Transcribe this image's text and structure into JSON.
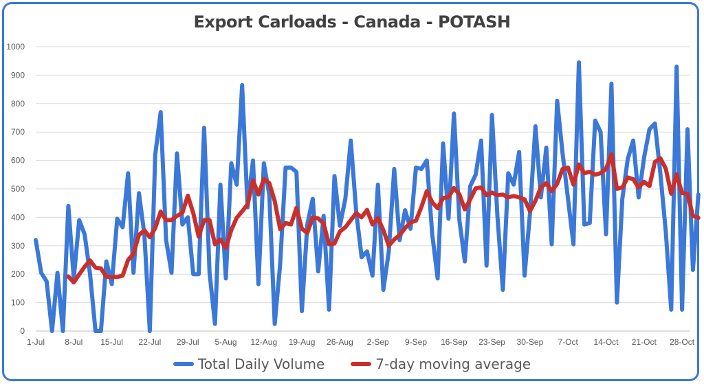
{
  "chart_data": {
    "type": "line",
    "title": "Export Carloads - Canada - POTASH",
    "xlabel": "",
    "ylabel": "",
    "ylim": [
      0,
      1000
    ],
    "yticks": [
      0,
      100,
      200,
      300,
      400,
      500,
      600,
      700,
      800,
      900,
      1000
    ],
    "x_tick_labels": [
      "1-Jul",
      "8-Jul",
      "15-Jul",
      "22-Jul",
      "29-Jul",
      "5-Aug",
      "12-Aug",
      "19-Aug",
      "26-Aug",
      "2-Sep",
      "9-Sep",
      "16-Sep",
      "23-Sep",
      "30-Sep",
      "7-Oct",
      "14-Oct",
      "21-Oct",
      "28-Oct"
    ],
    "gridlines": "horizontal",
    "legend_position": "bottom",
    "series": [
      {
        "name": "Total Daily Volume",
        "color": "#3b78d8",
        "values": [
          320,
          205,
          175,
          0,
          205,
          0,
          440,
          185,
          390,
          340,
          200,
          0,
          0,
          245,
          165,
          395,
          365,
          555,
          205,
          485,
          340,
          0,
          620,
          770,
          320,
          205,
          625,
          375,
          400,
          200,
          200,
          715,
          205,
          25,
          515,
          185,
          590,
          515,
          865,
          435,
          600,
          165,
          590,
          480,
          25,
          235,
          575,
          575,
          560,
          70,
          375,
          465,
          210,
          405,
          75,
          545,
          370,
          465,
          670,
          420,
          260,
          280,
          195,
          515,
          145,
          280,
          570,
          320,
          425,
          360,
          575,
          570,
          600,
          340,
          185,
          660,
          395,
          765,
          390,
          245,
          510,
          550,
          670,
          230,
          760,
          405,
          145,
          555,
          515,
          630,
          195,
          415,
          720,
          470,
          645,
          305,
          810,
          625,
          465,
          305,
          945,
          375,
          380,
          740,
          700,
          340,
          870,
          100,
          465,
          605,
          670,
          470,
          610,
          710,
          730,
          555,
          350,
          75,
          930,
          75,
          710,
          215,
          480
        ]
      },
      {
        "name": "7-day moving average",
        "color": "#c9302c",
        "values": [
          null,
          null,
          null,
          null,
          null,
          null,
          192,
          171,
          199,
          226,
          248,
          223,
          220,
          191,
          190,
          190,
          195,
          250,
          272,
          338,
          354,
          330,
          362,
          420,
          390,
          390,
          405,
          416,
          476,
          415,
          332,
          390,
          390,
          305,
          322,
          292,
          355,
          398,
          421,
          445,
          530,
          480,
          535,
          520,
          457,
          358,
          380,
          375,
          433,
          360,
          345,
          400,
          396,
          378,
          305,
          308,
          350,
          365,
          390,
          415,
          400,
          426,
          375,
          397,
          355,
          300,
          322,
          338,
          362,
          382,
          388,
          436,
          492,
          453,
          432,
          468,
          471,
          503,
          481,
          428,
          463,
          502,
          505,
          478,
          487,
          478,
          480,
          470,
          475,
          470,
          463,
          422,
          458,
          505,
          520,
          492,
          518,
          570,
          575,
          515,
          586,
          555,
          560,
          550,
          555,
          570,
          622,
          500,
          505,
          540,
          534,
          505,
          525,
          510,
          595,
          608,
          571,
          483,
          551,
          485,
          483,
          405,
          398
        ]
      }
    ]
  }
}
